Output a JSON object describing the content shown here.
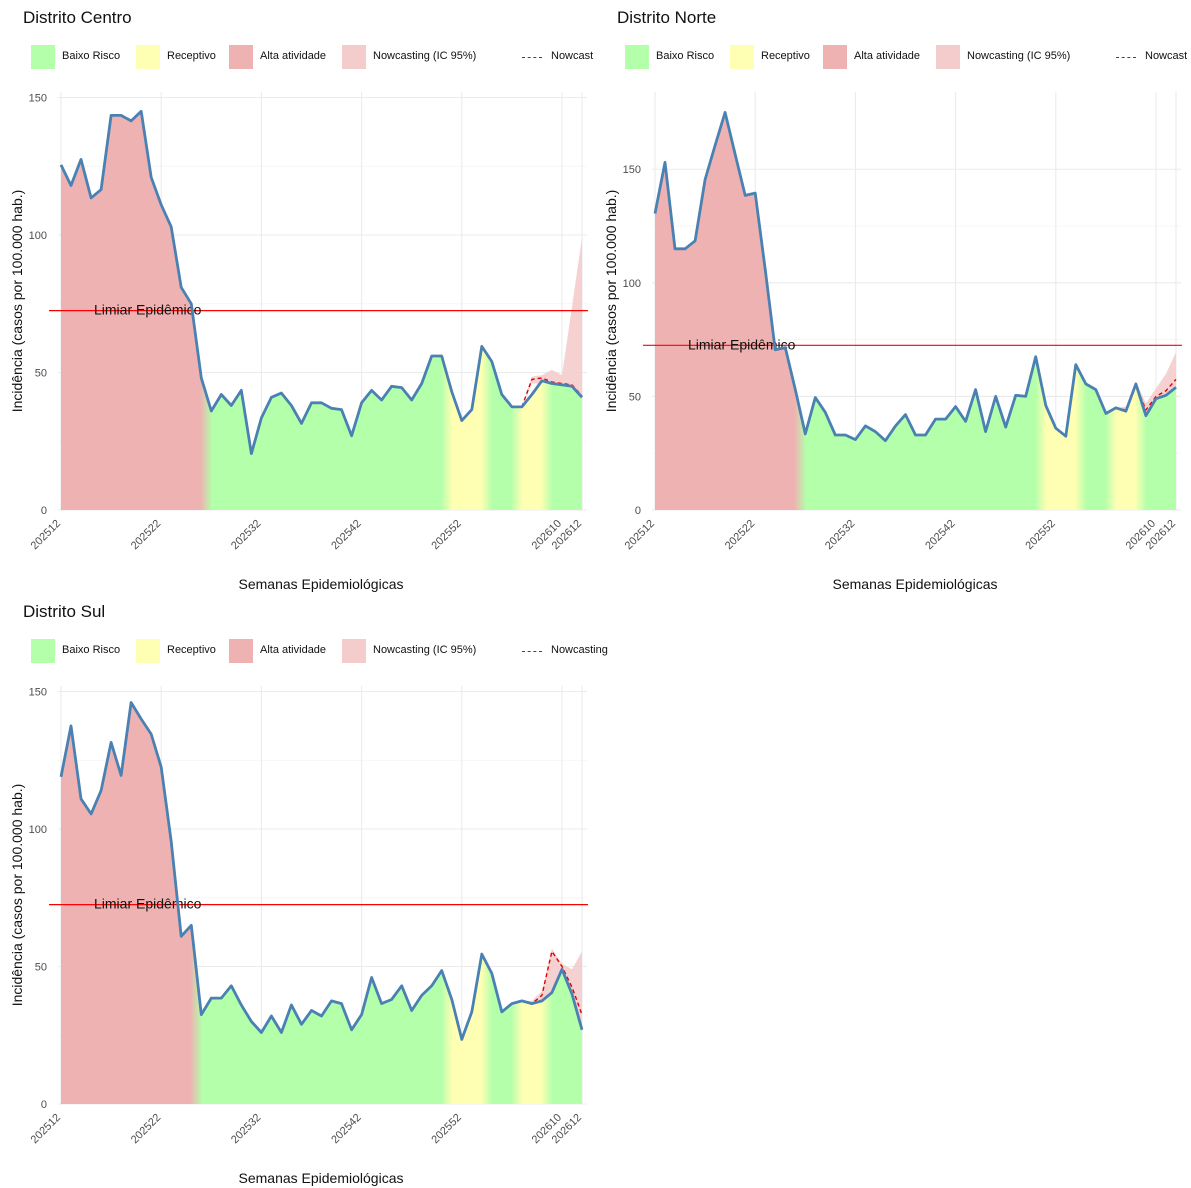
{
  "legend": {
    "items": [
      {
        "key": "baixo",
        "label": "Baixo Risco",
        "color": "#b3ffaa"
      },
      {
        "key": "receptivo",
        "label": "Receptivo",
        "color": "#ffffb3"
      },
      {
        "key": "alta",
        "label": "Alta atividade",
        "color": "#efb2b2"
      },
      {
        "key": "ic",
        "label": "Nowcasting (IC 95%)",
        "color": "#f5cccc"
      }
    ],
    "nowcast_color": "#e00000",
    "line_color": "#4a81b3"
  },
  "chart_data": [
    {
      "type": "area",
      "title": "Distrito Centro",
      "nowcast_label": "Nowcast",
      "xlabel": "Semanas Epidemiológicas",
      "ylabel": "Incidência (casos por 100.000 hab.)",
      "ylim": [
        0,
        152
      ],
      "yticks": [
        0,
        50,
        100,
        150
      ],
      "threshold": 72.5,
      "threshold_label": "Limiar Epidêmico",
      "x_tick_labels": [
        "202512",
        "202522",
        "202532",
        "202542",
        "202552",
        "202610",
        "202612"
      ],
      "x_tick_index": [
        0,
        10,
        20,
        30,
        40,
        50,
        52
      ],
      "zones": [
        {
          "level": "alta",
          "from": 0,
          "to": 14.5
        },
        {
          "level": "baixo",
          "from": 14.5,
          "to": 38.5
        },
        {
          "level": "receptivo",
          "from": 38.5,
          "to": 42.5
        },
        {
          "level": "baixo",
          "from": 42.5,
          "to": 45.5
        },
        {
          "level": "receptivo",
          "from": 45.5,
          "to": 48.5
        },
        {
          "level": "baixo",
          "from": 48.5,
          "to": 52
        }
      ],
      "values": [
        125.5,
        118,
        127.5,
        113.5,
        116.5,
        143.5,
        143.5,
        141.5,
        145,
        121,
        111,
        103,
        81,
        75,
        48,
        36,
        42,
        38,
        43.5,
        20.5,
        33.5,
        41,
        42.5,
        38,
        31.5,
        39,
        39,
        37,
        36.5,
        27,
        39,
        43.5,
        40,
        45,
        44.5,
        40,
        46,
        56,
        56,
        43,
        32.5,
        36.5,
        59.5,
        54,
        42,
        37.5,
        37.5,
        42,
        47,
        46,
        45.5,
        45,
        41
      ],
      "nowcast": {
        "start_index": 46,
        "values": [
          37.5,
          47.5,
          48,
          46.5,
          46,
          45.5,
          41.5
        ]
      },
      "ci": {
        "start_index": 46,
        "upper": [
          37.5,
          48.5,
          49,
          51,
          49,
          74,
          99
        ],
        "lower": [
          37.5,
          46,
          46,
          45,
          44,
          43,
          40
        ]
      }
    },
    {
      "type": "area",
      "title": "Distrito Norte",
      "nowcast_label": "Nowcast",
      "xlabel": "Semanas Epidemiológicas",
      "ylabel": "Incidência (casos por 100.000 hab.)",
      "ylim": [
        0,
        184
      ],
      "yticks": [
        0,
        50,
        100,
        150
      ],
      "threshold": 72.5,
      "threshold_label": "Limiar Epidêmico",
      "x_tick_labels": [
        "202512",
        "202522",
        "202532",
        "202542",
        "202552",
        "202610",
        "202612"
      ],
      "x_tick_index": [
        0,
        10,
        20,
        30,
        40,
        50,
        52
      ],
      "zones": [
        {
          "level": "alta",
          "from": 0,
          "to": 14.5
        },
        {
          "level": "baixo",
          "from": 14.5,
          "to": 38.5
        },
        {
          "level": "receptivo",
          "from": 38.5,
          "to": 42.5
        },
        {
          "level": "baixo",
          "from": 42.5,
          "to": 45.5
        },
        {
          "level": "receptivo",
          "from": 45.5,
          "to": 48.5
        },
        {
          "level": "baixo",
          "from": 48.5,
          "to": 52
        }
      ],
      "values": [
        130.5,
        153,
        115,
        115,
        118.5,
        145.5,
        160.5,
        175,
        156.5,
        138.5,
        139.5,
        106,
        70.5,
        71.5,
        53,
        33.5,
        49.5,
        43,
        33,
        33,
        31,
        37,
        34.5,
        30.5,
        37,
        42,
        33,
        33,
        40,
        40,
        45.5,
        39,
        53,
        34.5,
        50,
        36.5,
        50.5,
        50,
        67.5,
        46,
        36,
        32.5,
        64,
        55.5,
        53,
        42.5,
        45,
        43.5,
        55.5,
        41.5,
        49,
        50.5,
        54
      ],
      "nowcast": {
        "start_index": 46,
        "values": [
          45,
          44,
          55,
          44,
          50,
          52.5,
          57.5
        ]
      },
      "ci": {
        "start_index": 46,
        "upper": [
          45,
          45.5,
          56.5,
          47,
          53.5,
          60,
          69.5
        ],
        "lower": [
          45,
          43,
          52.5,
          41,
          47.5,
          49.5,
          51
        ]
      }
    },
    {
      "type": "area",
      "title": "Distrito Sul",
      "nowcast_label": "Nowcasting",
      "xlabel": "Semanas Epidemiológicas",
      "ylabel": "Incidência (casos por 100.000 hab.)",
      "ylim": [
        0,
        152
      ],
      "yticks": [
        0,
        50,
        100,
        150
      ],
      "threshold": 72.5,
      "threshold_label": "Limiar Epidêmico",
      "x_tick_labels": [
        "202512",
        "202522",
        "202532",
        "202542",
        "202552",
        "202610",
        "202612"
      ],
      "x_tick_index": [
        0,
        10,
        20,
        30,
        40,
        50,
        52
      ],
      "zones": [
        {
          "level": "alta",
          "from": 0,
          "to": 13.5
        },
        {
          "level": "baixo",
          "from": 13.5,
          "to": 38.5
        },
        {
          "level": "receptivo",
          "from": 38.5,
          "to": 42.5
        },
        {
          "level": "baixo",
          "from": 42.5,
          "to": 45.5
        },
        {
          "level": "receptivo",
          "from": 45.5,
          "to": 48.5
        },
        {
          "level": "baixo",
          "from": 48.5,
          "to": 52
        }
      ],
      "values": [
        119,
        137.5,
        111,
        105.5,
        114,
        131.5,
        119.5,
        146,
        140,
        134.5,
        122.5,
        95.5,
        61,
        65,
        32.5,
        38.5,
        38.5,
        43,
        36,
        30,
        26,
        32,
        26,
        36,
        29,
        34,
        32,
        37.5,
        36.5,
        27,
        32.5,
        46,
        36.5,
        38,
        43,
        34,
        39.5,
        43,
        48.5,
        38,
        23.5,
        33.5,
        54.5,
        47.5,
        33.5,
        36.5,
        37.5,
        36.5,
        37.5,
        40.5,
        49,
        40,
        27
      ],
      "nowcast": {
        "start_index": 46,
        "values": [
          37.5,
          36.5,
          39.5,
          55.5,
          50,
          42.5,
          32.5
        ]
      },
      "ci": {
        "start_index": 46,
        "upper": [
          37.5,
          37.5,
          41,
          56.5,
          51,
          49,
          55.5
        ],
        "lower": [
          37.5,
          36,
          37.5,
          38.5,
          44,
          38,
          28
        ]
      }
    }
  ]
}
